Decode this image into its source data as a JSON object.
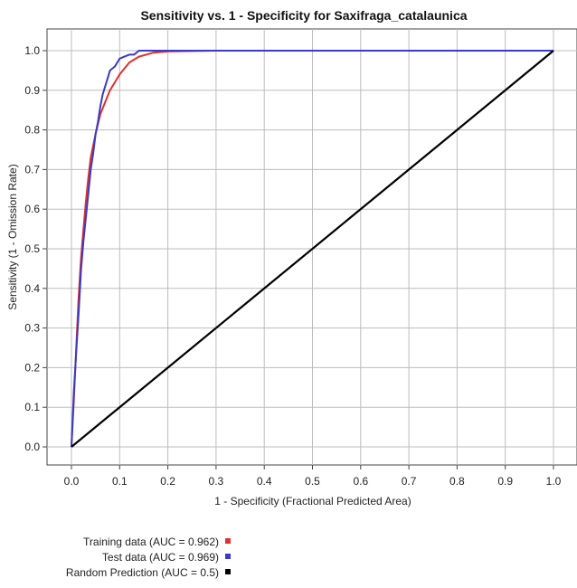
{
  "chart_data": {
    "type": "line",
    "title": "Sensitivity vs. 1 - Specificity for Saxifraga_catalaunica",
    "xlabel": "1 - Specificity  (Fractional Predicted Area)",
    "ylabel": "Sensitivity (1 - Omission Rate)",
    "xlim": [
      0,
      1
    ],
    "ylim": [
      0,
      1
    ],
    "xticks": [
      "0.0",
      "0.1",
      "0.2",
      "0.3",
      "0.4",
      "0.5",
      "0.6",
      "0.7",
      "0.8",
      "0.9",
      "1.0"
    ],
    "yticks": [
      "0.0",
      "0.1",
      "0.2",
      "0.3",
      "0.4",
      "0.5",
      "0.6",
      "0.7",
      "0.8",
      "0.9",
      "1.0"
    ],
    "grid": true,
    "legend_position": "bottom-left",
    "series": [
      {
        "name": "Training data (AUC = 0.962)",
        "color": "#e03030",
        "x": [
          0,
          0.005,
          0.01,
          0.015,
          0.02,
          0.025,
          0.03,
          0.035,
          0.04,
          0.05,
          0.06,
          0.07,
          0.08,
          0.09,
          0.1,
          0.12,
          0.14,
          0.17,
          0.2,
          0.3,
          0.5,
          1.0
        ],
        "y": [
          0,
          0.12,
          0.25,
          0.38,
          0.48,
          0.55,
          0.62,
          0.68,
          0.73,
          0.79,
          0.84,
          0.87,
          0.9,
          0.92,
          0.94,
          0.97,
          0.985,
          0.995,
          0.998,
          1.0,
          1.0,
          1.0
        ]
      },
      {
        "name": "Test data (AUC = 0.969)",
        "color": "#3a3ac8",
        "x": [
          0,
          0.005,
          0.01,
          0.015,
          0.02,
          0.025,
          0.03,
          0.035,
          0.04,
          0.045,
          0.05,
          0.055,
          0.06,
          0.065,
          0.07,
          0.075,
          0.08,
          0.09,
          0.1,
          0.11,
          0.12,
          0.13,
          0.14,
          0.2,
          1.0
        ],
        "y": [
          0,
          0.14,
          0.24,
          0.34,
          0.45,
          0.52,
          0.58,
          0.64,
          0.7,
          0.74,
          0.79,
          0.82,
          0.86,
          0.89,
          0.91,
          0.93,
          0.95,
          0.96,
          0.98,
          0.985,
          0.99,
          0.99,
          1.0,
          1.0,
          1.0
        ]
      },
      {
        "name": "Random Prediction (AUC = 0.5)",
        "color": "#000000",
        "x": [
          0,
          1
        ],
        "y": [
          0,
          1
        ]
      }
    ]
  }
}
